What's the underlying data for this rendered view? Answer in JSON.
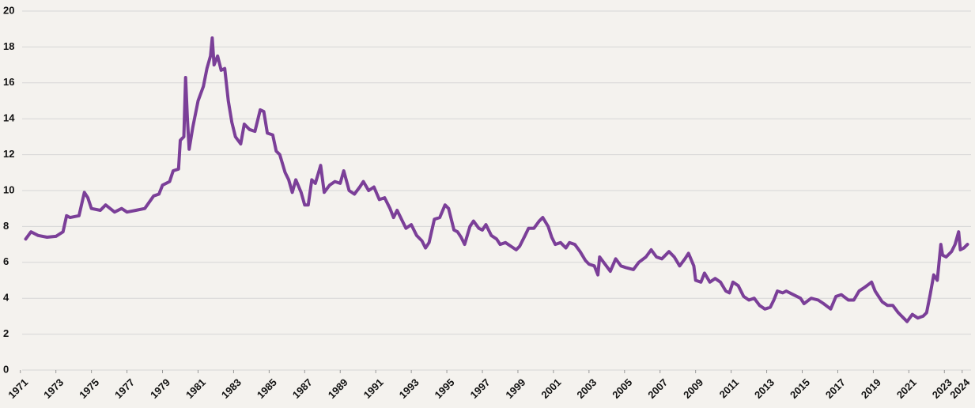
{
  "chart_data": {
    "type": "line",
    "x": [
      1971.3,
      1971.6,
      1972.0,
      1972.5,
      1973.0,
      1973.4,
      1973.6,
      1973.8,
      1974.3,
      1974.6,
      1974.8,
      1975.0,
      1975.5,
      1975.8,
      1976.3,
      1976.7,
      1977.0,
      1977.5,
      1978.0,
      1978.5,
      1978.8,
      1979.0,
      1979.4,
      1979.6,
      1979.9,
      1980.0,
      1980.2,
      1980.3,
      1980.4,
      1980.5,
      1980.7,
      1981.0,
      1981.3,
      1981.5,
      1981.7,
      1981.8,
      1981.9,
      1982.1,
      1982.3,
      1982.5,
      1982.7,
      1982.9,
      1983.1,
      1983.4,
      1983.6,
      1983.9,
      1984.2,
      1984.5,
      1984.7,
      1984.9,
      1985.2,
      1985.4,
      1985.6,
      1985.9,
      1986.1,
      1986.3,
      1986.5,
      1986.8,
      1987.0,
      1987.2,
      1987.4,
      1987.6,
      1987.9,
      1988.1,
      1988.4,
      1988.7,
      1989.0,
      1989.2,
      1989.5,
      1989.8,
      1990.1,
      1990.3,
      1990.6,
      1990.9,
      1991.2,
      1991.5,
      1991.8,
      1992.0,
      1992.2,
      1992.5,
      1992.7,
      1993.0,
      1993.3,
      1993.6,
      1993.8,
      1994.0,
      1994.3,
      1994.6,
      1994.9,
      1995.1,
      1995.4,
      1995.6,
      1995.8,
      1996.0,
      1996.3,
      1996.5,
      1996.8,
      1997.0,
      1997.2,
      1997.5,
      1997.8,
      1998.0,
      1998.3,
      1998.6,
      1998.9,
      1999.1,
      1999.4,
      1999.6,
      1999.9,
      2000.2,
      2000.4,
      2000.7,
      2000.9,
      2001.1,
      2001.4,
      2001.7,
      2001.9,
      2002.2,
      2002.5,
      2002.8,
      2003.0,
      2003.3,
      2003.5,
      2003.6,
      2003.9,
      2004.2,
      2004.5,
      2004.8,
      2005.1,
      2005.5,
      2005.8,
      2006.2,
      2006.5,
      2006.8,
      2007.1,
      2007.5,
      2007.8,
      2008.1,
      2008.4,
      2008.6,
      2008.9,
      2009.0,
      2009.3,
      2009.5,
      2009.8,
      2010.1,
      2010.4,
      2010.7,
      2010.9,
      2011.1,
      2011.4,
      2011.7,
      2012.0,
      2012.3,
      2012.6,
      2012.9,
      2013.2,
      2013.4,
      2013.6,
      2013.9,
      2014.1,
      2014.5,
      2014.9,
      2015.1,
      2015.5,
      2015.9,
      2016.2,
      2016.6,
      2016.9,
      2017.2,
      2017.6,
      2017.9,
      2018.2,
      2018.5,
      2018.9,
      2019.1,
      2019.5,
      2019.8,
      2020.1,
      2020.4,
      2020.7,
      2020.9,
      2021.2,
      2021.5,
      2021.8,
      2022.0,
      2022.2,
      2022.4,
      2022.6,
      2022.8,
      2022.9,
      2023.1,
      2023.4,
      2023.6,
      2023.8,
      2023.9,
      2024.1,
      2024.3
    ],
    "values": [
      7.3,
      7.7,
      7.5,
      7.4,
      7.45,
      7.7,
      8.6,
      8.5,
      8.6,
      9.9,
      9.6,
      9.0,
      8.9,
      9.2,
      8.8,
      9.0,
      8.8,
      8.9,
      9.0,
      9.7,
      9.8,
      10.3,
      10.5,
      11.1,
      11.2,
      12.8,
      13.0,
      16.3,
      14.0,
      12.3,
      13.5,
      15.0,
      15.8,
      16.8,
      17.5,
      18.5,
      17.0,
      17.5,
      16.7,
      16.8,
      15.0,
      13.8,
      13.0,
      12.6,
      13.7,
      13.4,
      13.3,
      14.5,
      14.4,
      13.2,
      13.1,
      12.2,
      12.0,
      11.0,
      10.6,
      9.9,
      10.6,
      9.9,
      9.2,
      9.2,
      10.6,
      10.4,
      11.4,
      9.9,
      10.3,
      10.5,
      10.4,
      11.1,
      10.0,
      9.8,
      10.2,
      10.5,
      10.0,
      10.2,
      9.5,
      9.6,
      9.0,
      8.5,
      8.9,
      8.3,
      7.9,
      8.1,
      7.5,
      7.2,
      6.8,
      7.1,
      8.4,
      8.5,
      9.2,
      9.0,
      7.8,
      7.7,
      7.4,
      7.0,
      8.0,
      8.3,
      7.9,
      7.8,
      8.1,
      7.5,
      7.3,
      7.0,
      7.1,
      6.9,
      6.7,
      6.9,
      7.5,
      7.9,
      7.9,
      8.3,
      8.5,
      8.0,
      7.4,
      7.0,
      7.1,
      6.8,
      7.1,
      7.0,
      6.6,
      6.1,
      5.9,
      5.8,
      5.3,
      6.3,
      5.9,
      5.5,
      6.2,
      5.8,
      5.7,
      5.6,
      6.0,
      6.3,
      6.7,
      6.3,
      6.2,
      6.6,
      6.3,
      5.8,
      6.2,
      6.5,
      5.8,
      5.0,
      4.9,
      5.4,
      4.9,
      5.1,
      4.9,
      4.4,
      4.3,
      4.9,
      4.7,
      4.1,
      3.9,
      4.0,
      3.6,
      3.4,
      3.5,
      3.9,
      4.4,
      4.3,
      4.4,
      4.2,
      4.0,
      3.7,
      4.0,
      3.9,
      3.7,
      3.4,
      4.1,
      4.2,
      3.9,
      3.9,
      4.4,
      4.6,
      4.9,
      4.4,
      3.8,
      3.6,
      3.6,
      3.2,
      2.9,
      2.7,
      3.1,
      2.9,
      3.0,
      3.2,
      4.2,
      5.3,
      5.0,
      7.0,
      6.4,
      6.3,
      6.6,
      7.0,
      7.7,
      6.7,
      6.8,
      7.0
    ],
    "color": "#7b3f98",
    "xlim": [
      1971.1,
      2024.5
    ],
    "xticks": [
      1971,
      1973,
      1975,
      1977,
      1979,
      1981,
      1983,
      1985,
      1987,
      1989,
      1991,
      1993,
      1995,
      1997,
      1999,
      2001,
      2003,
      2005,
      2007,
      2009,
      2011,
      2013,
      2015,
      2017,
      2019,
      2021,
      2023,
      2024
    ],
    "ylim": [
      0,
      20
    ],
    "yticks": [
      0,
      2,
      4,
      6,
      8,
      10,
      12,
      14,
      16,
      18,
      20
    ],
    "grid": true
  }
}
